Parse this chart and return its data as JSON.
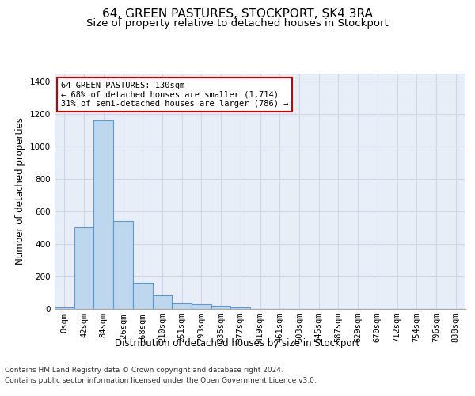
{
  "title": "64, GREEN PASTURES, STOCKPORT, SK4 3RA",
  "subtitle": "Size of property relative to detached houses in Stockport",
  "xlabel": "Distribution of detached houses by size in Stockport",
  "ylabel": "Number of detached properties",
  "bin_labels": [
    "0sqm",
    "42sqm",
    "84sqm",
    "126sqm",
    "168sqm",
    "210sqm",
    "251sqm",
    "293sqm",
    "335sqm",
    "377sqm",
    "419sqm",
    "461sqm",
    "503sqm",
    "545sqm",
    "587sqm",
    "629sqm",
    "670sqm",
    "712sqm",
    "754sqm",
    "796sqm",
    "838sqm"
  ],
  "bar_values": [
    10,
    500,
    1160,
    540,
    162,
    84,
    33,
    28,
    20,
    10,
    0,
    0,
    0,
    0,
    0,
    0,
    0,
    0,
    0,
    0,
    0
  ],
  "bar_color": "#bdd7ee",
  "bar_edge_color": "#5b9bd5",
  "annotation_line1": "64 GREEN PASTURES: 130sqm",
  "annotation_line2": "← 68% of detached houses are smaller (1,714)",
  "annotation_line3": "31% of semi-detached houses are larger (786) →",
  "annotation_box_color": "#ffffff",
  "annotation_box_edge_color": "#cc0000",
  "grid_color": "#d0d8e8",
  "bg_color": "#e8eef8",
  "ylim": [
    0,
    1450
  ],
  "yticks": [
    0,
    200,
    400,
    600,
    800,
    1000,
    1200,
    1400
  ],
  "footer_line1": "Contains HM Land Registry data © Crown copyright and database right 2024.",
  "footer_line2": "Contains public sector information licensed under the Open Government Licence v3.0.",
  "title_fontsize": 11,
  "subtitle_fontsize": 9.5,
  "label_fontsize": 8.5,
  "tick_fontsize": 7.5,
  "footer_fontsize": 6.5,
  "annot_fontsize": 7.5
}
